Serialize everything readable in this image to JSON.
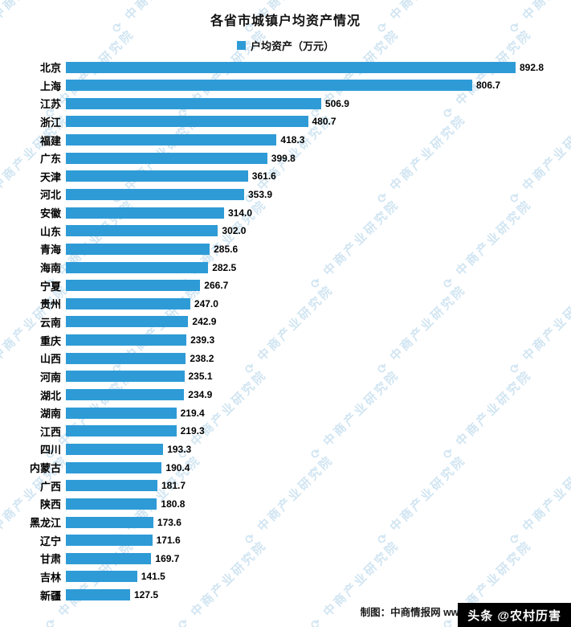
{
  "chart_data": {
    "type": "bar",
    "orientation": "horizontal",
    "title": "各省市城镇户均资产情况",
    "legend": "户均资产（万元）",
    "categories": [
      "北京",
      "上海",
      "江苏",
      "浙江",
      "福建",
      "广东",
      "天津",
      "河北",
      "安徽",
      "山东",
      "青海",
      "海南",
      "宁夏",
      "贵州",
      "云南",
      "重庆",
      "山西",
      "河南",
      "湖北",
      "湖南",
      "江西",
      "四川",
      "内蒙古",
      "广西",
      "陕西",
      "黑龙江",
      "辽宁",
      "甘肃",
      "吉林",
      "新疆"
    ],
    "values": [
      892.8,
      806.7,
      506.9,
      480.7,
      418.3,
      399.8,
      361.6,
      353.9,
      314.0,
      302.0,
      285.6,
      282.5,
      266.7,
      247.0,
      242.9,
      239.3,
      238.2,
      235.1,
      234.9,
      219.4,
      219.3,
      193.3,
      190.4,
      181.7,
      180.8,
      173.6,
      171.6,
      169.7,
      141.5,
      127.5
    ],
    "value_labels": [
      "892.8",
      "806.7",
      "506.9",
      "480.7",
      "418.3",
      "399.8",
      "361.6",
      "353.9",
      "314.0",
      "302.0",
      "285.6",
      "282.5",
      "266.7",
      "247.0",
      "242.9",
      "239.3",
      "238.2",
      "235.1",
      "234.9",
      "219.4",
      "219.3",
      "193.3",
      "190.4",
      "181.7",
      "180.8",
      "173.6",
      "171.6",
      "169.7",
      "141.5",
      "127.5"
    ],
    "xlim": [
      0,
      980
    ],
    "bar_color": "#2e9bd6",
    "grid": false,
    "legend_position": "top-center"
  },
  "watermark": {
    "symbol": "⟳",
    "text": "中商产业研究院",
    "color": "#b9d8ec"
  },
  "footer": {
    "credit": "制图：中商情报网 www.askci.",
    "badge": "头条 @农村历害"
  }
}
